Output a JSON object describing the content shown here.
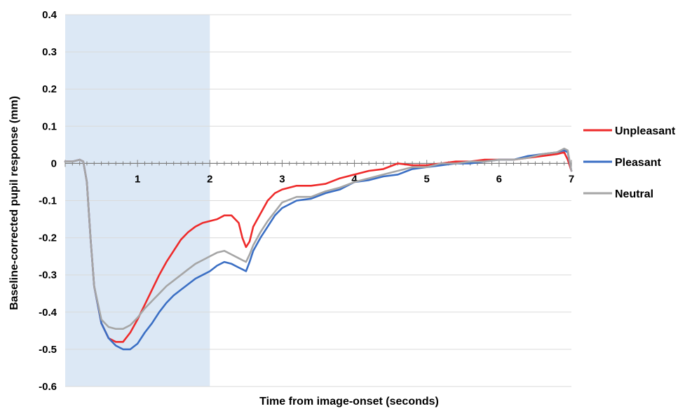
{
  "chart_data": {
    "type": "line",
    "title": "",
    "xlabel": "Time from image-onset (seconds)",
    "ylabel": "Baseline-corrected pupil response (mm)",
    "xlim": [
      0,
      7
    ],
    "ylim": [
      -0.6,
      0.4
    ],
    "x_ticks": [
      "1",
      "2",
      "3",
      "4",
      "5",
      "6",
      "7"
    ],
    "y_ticks": [
      "0.4",
      "0.3",
      "0.2",
      "0.1",
      "0",
      "-0.1",
      "-0.2",
      "-0.3",
      "-0.4",
      "-0.5",
      "-0.6"
    ],
    "x_tick_values": [
      1,
      2,
      3,
      4,
      5,
      6,
      7
    ],
    "y_tick_values": [
      0.4,
      0.3,
      0.2,
      0.1,
      0,
      -0.1,
      -0.2,
      -0.3,
      -0.4,
      -0.5,
      -0.6
    ],
    "grid": "horizontal",
    "legend_position": "right",
    "shaded_region": {
      "x_start": 0,
      "x_end": 2,
      "color": "#dce8f5"
    },
    "series": [
      {
        "name": "Unpleasant",
        "color": "#ee2b2b",
        "x": [
          0,
          0.1,
          0.2,
          0.25,
          0.3,
          0.35,
          0.4,
          0.5,
          0.6,
          0.7,
          0.8,
          0.9,
          1.0,
          1.1,
          1.2,
          1.3,
          1.4,
          1.5,
          1.6,
          1.7,
          1.8,
          1.9,
          2.0,
          2.1,
          2.2,
          2.3,
          2.4,
          2.45,
          2.5,
          2.55,
          2.6,
          2.7,
          2.8,
          2.9,
          3.0,
          3.2,
          3.4,
          3.6,
          3.8,
          4.0,
          4.2,
          4.4,
          4.6,
          4.8,
          5.0,
          5.2,
          5.4,
          5.6,
          5.8,
          6.0,
          6.2,
          6.4,
          6.6,
          6.8,
          6.9,
          6.95,
          7.0
        ],
        "values": [
          0.005,
          0.005,
          0.01,
          0.005,
          -0.05,
          -0.2,
          -0.33,
          -0.43,
          -0.47,
          -0.48,
          -0.48,
          -0.455,
          -0.42,
          -0.38,
          -0.34,
          -0.3,
          -0.265,
          -0.235,
          -0.205,
          -0.185,
          -0.17,
          -0.16,
          -0.155,
          -0.15,
          -0.14,
          -0.14,
          -0.16,
          -0.2,
          -0.225,
          -0.21,
          -0.17,
          -0.135,
          -0.1,
          -0.08,
          -0.07,
          -0.06,
          -0.06,
          -0.055,
          -0.04,
          -0.03,
          -0.02,
          -0.015,
          0.0,
          -0.005,
          -0.005,
          0.0,
          0.005,
          0.005,
          0.01,
          0.01,
          0.01,
          0.015,
          0.02,
          0.025,
          0.03,
          0.01,
          -0.02
        ]
      },
      {
        "name": "Pleasant",
        "color": "#3b6fc4",
        "x": [
          0,
          0.1,
          0.2,
          0.25,
          0.3,
          0.35,
          0.4,
          0.5,
          0.6,
          0.7,
          0.8,
          0.9,
          1.0,
          1.1,
          1.2,
          1.3,
          1.4,
          1.5,
          1.6,
          1.7,
          1.8,
          1.9,
          2.0,
          2.1,
          2.2,
          2.3,
          2.4,
          2.45,
          2.5,
          2.55,
          2.6,
          2.7,
          2.8,
          2.9,
          3.0,
          3.2,
          3.4,
          3.6,
          3.8,
          4.0,
          4.2,
          4.4,
          4.6,
          4.8,
          5.0,
          5.2,
          5.4,
          5.6,
          5.8,
          6.0,
          6.2,
          6.4,
          6.6,
          6.8,
          6.9,
          6.95,
          7.0
        ],
        "values": [
          0.005,
          0.005,
          0.01,
          0.005,
          -0.05,
          -0.2,
          -0.33,
          -0.43,
          -0.47,
          -0.49,
          -0.5,
          -0.5,
          -0.485,
          -0.455,
          -0.43,
          -0.4,
          -0.375,
          -0.355,
          -0.34,
          -0.325,
          -0.31,
          -0.3,
          -0.29,
          -0.275,
          -0.265,
          -0.27,
          -0.28,
          -0.285,
          -0.29,
          -0.265,
          -0.235,
          -0.2,
          -0.17,
          -0.14,
          -0.12,
          -0.1,
          -0.095,
          -0.08,
          -0.07,
          -0.05,
          -0.045,
          -0.035,
          -0.03,
          -0.015,
          -0.01,
          -0.005,
          0.0,
          0.0,
          0.005,
          0.01,
          0.01,
          0.02,
          0.025,
          0.03,
          0.035,
          0.03,
          -0.02
        ]
      },
      {
        "name": "Neutral",
        "color": "#a6a6a6",
        "x": [
          0,
          0.1,
          0.2,
          0.25,
          0.3,
          0.35,
          0.4,
          0.5,
          0.6,
          0.7,
          0.8,
          0.9,
          1.0,
          1.1,
          1.2,
          1.3,
          1.4,
          1.5,
          1.6,
          1.7,
          1.8,
          1.9,
          2.0,
          2.1,
          2.2,
          2.3,
          2.4,
          2.45,
          2.5,
          2.55,
          2.6,
          2.7,
          2.8,
          2.9,
          3.0,
          3.2,
          3.4,
          3.6,
          3.8,
          4.0,
          4.2,
          4.4,
          4.6,
          4.8,
          5.0,
          5.2,
          5.4,
          5.6,
          5.8,
          6.0,
          6.2,
          6.4,
          6.6,
          6.8,
          6.9,
          6.95,
          7.0
        ],
        "values": [
          0.005,
          0.005,
          0.01,
          0.005,
          -0.05,
          -0.2,
          -0.33,
          -0.42,
          -0.44,
          -0.445,
          -0.445,
          -0.435,
          -0.415,
          -0.39,
          -0.37,
          -0.35,
          -0.33,
          -0.315,
          -0.3,
          -0.285,
          -0.27,
          -0.26,
          -0.25,
          -0.24,
          -0.235,
          -0.245,
          -0.255,
          -0.26,
          -0.265,
          -0.245,
          -0.22,
          -0.185,
          -0.155,
          -0.13,
          -0.105,
          -0.09,
          -0.09,
          -0.075,
          -0.065,
          -0.05,
          -0.04,
          -0.03,
          -0.02,
          -0.01,
          -0.01,
          0.0,
          0.0,
          0.005,
          0.005,
          0.01,
          0.01,
          0.015,
          0.025,
          0.03,
          0.04,
          0.035,
          -0.02
        ]
      }
    ]
  }
}
